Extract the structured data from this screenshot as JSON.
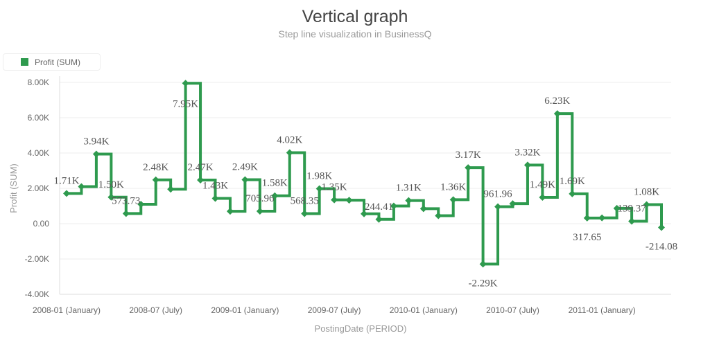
{
  "header": {
    "title": "Vertical graph",
    "subtitle": "Step line visualization in BusinessQ"
  },
  "legend": {
    "items": [
      {
        "label": "Profit (SUM)",
        "color": "#2e9a4e"
      }
    ]
  },
  "chart_data": {
    "type": "line",
    "line_style": "step",
    "title": "Vertical graph",
    "subtitle": "Step line visualization in BusinessQ",
    "xlabel": "PostingDate (PERIOD)",
    "ylabel": "Profit (SUM)",
    "ylim": [
      -4000,
      8000
    ],
    "yticks": [
      -4000,
      -2000,
      0,
      2000,
      4000,
      6000,
      8000
    ],
    "ytick_labels": [
      "-4.00K",
      "-2.00K",
      "0.00",
      "2.00K",
      "4.00K",
      "6.00K",
      "8.00K"
    ],
    "xtick_labels": [
      {
        "index": 0,
        "label": "2008-01 (January)"
      },
      {
        "index": 6,
        "label": "2008-07 (July)"
      },
      {
        "index": 12,
        "label": "2009-01 (January)"
      },
      {
        "index": 18,
        "label": "2009-07 (July)"
      },
      {
        "index": 24,
        "label": "2010-01 (January)"
      },
      {
        "index": 30,
        "label": "2010-07 (July)"
      },
      {
        "index": 36,
        "label": "2011-01 (January)"
      }
    ],
    "grid": true,
    "legend_position": "top-left",
    "color": "#2e9a4e",
    "x": [
      "2008-01",
      "2008-02",
      "2008-03",
      "2008-04",
      "2008-05",
      "2008-06",
      "2008-07",
      "2008-08",
      "2008-09",
      "2008-10",
      "2008-11",
      "2008-12",
      "2009-01",
      "2009-02",
      "2009-03",
      "2009-04",
      "2009-05",
      "2009-06",
      "2009-07",
      "2009-08",
      "2009-09",
      "2009-10",
      "2009-11",
      "2009-12",
      "2010-01",
      "2010-02",
      "2010-03",
      "2010-04",
      "2010-05",
      "2010-06",
      "2010-07",
      "2010-08",
      "2010-09",
      "2010-10",
      "2010-11",
      "2010-12",
      "2011-01",
      "2011-02",
      "2011-03",
      "2011-04",
      "2011-05"
    ],
    "series": [
      {
        "name": "Profit (SUM)",
        "values": [
          1710,
          2100,
          3940,
          1500,
          573.73,
          1100,
          2480,
          1950,
          7950,
          2470,
          1430,
          700,
          2490,
          705.96,
          1580,
          4020,
          568.35,
          1980,
          1350,
          1330,
          560,
          244.41,
          1000,
          1310,
          850,
          450,
          1360,
          3170,
          -2290,
          961.96,
          1130,
          3320,
          1490,
          6230,
          1690,
          317.65,
          330,
          870,
          139.37,
          1080,
          -214.08
        ]
      }
    ],
    "data_labels": [
      {
        "index": 0,
        "text": "1.71K",
        "pos": "above"
      },
      {
        "index": 2,
        "text": "3.94K",
        "pos": "above"
      },
      {
        "index": 3,
        "text": "1.50K",
        "pos": "above"
      },
      {
        "index": 4,
        "text": "573.73",
        "pos": "above"
      },
      {
        "index": 6,
        "text": "2.48K",
        "pos": "above"
      },
      {
        "index": 8,
        "text": "7.95K",
        "pos": "inside"
      },
      {
        "index": 9,
        "text": "2.47K",
        "pos": "above"
      },
      {
        "index": 10,
        "text": "1.43K",
        "pos": "above"
      },
      {
        "index": 12,
        "text": "2.49K",
        "pos": "above"
      },
      {
        "index": 13,
        "text": "705.96",
        "pos": "above"
      },
      {
        "index": 14,
        "text": "1.58K",
        "pos": "above"
      },
      {
        "index": 15,
        "text": "4.02K",
        "pos": "above"
      },
      {
        "index": 16,
        "text": "568.35",
        "pos": "above"
      },
      {
        "index": 17,
        "text": "1.98K",
        "pos": "above"
      },
      {
        "index": 18,
        "text": "1.35K",
        "pos": "above"
      },
      {
        "index": 21,
        "text": "244.41",
        "pos": "above"
      },
      {
        "index": 23,
        "text": "1.31K",
        "pos": "above"
      },
      {
        "index": 26,
        "text": "1.36K",
        "pos": "above"
      },
      {
        "index": 27,
        "text": "3.17K",
        "pos": "above"
      },
      {
        "index": 28,
        "text": "-2.29K",
        "pos": "below"
      },
      {
        "index": 29,
        "text": "961.96",
        "pos": "above"
      },
      {
        "index": 31,
        "text": "3.32K",
        "pos": "above"
      },
      {
        "index": 32,
        "text": "1.49K",
        "pos": "above"
      },
      {
        "index": 33,
        "text": "6.23K",
        "pos": "above"
      },
      {
        "index": 34,
        "text": "1.69K",
        "pos": "above"
      },
      {
        "index": 35,
        "text": "317.65",
        "pos": "below"
      },
      {
        "index": 38,
        "text": "139.37",
        "pos": "above"
      },
      {
        "index": 39,
        "text": "1.08K",
        "pos": "above"
      },
      {
        "index": 40,
        "text": "-214.08",
        "pos": "below"
      }
    ]
  }
}
